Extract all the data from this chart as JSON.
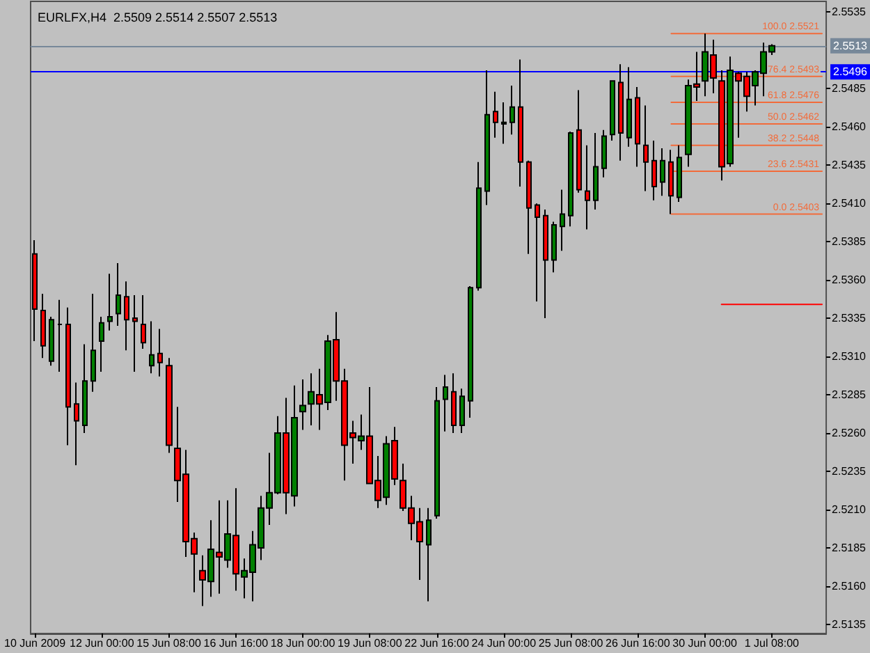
{
  "chart_data": {
    "type": "candlestick",
    "title": "EURLFX,H4  2.5509 2.5514 2.5507 2.5513",
    "categories": [
      "10 Jun 2009",
      null,
      null,
      null,
      null,
      null,
      null,
      null,
      "12 Jun 00:00",
      null,
      null,
      null,
      null,
      null,
      null,
      null,
      "15 Jun 08:00",
      null,
      null,
      null,
      null,
      null,
      null,
      null,
      "16 Jun 16:00",
      null,
      null,
      null,
      null,
      null,
      null,
      null,
      "18 Jun 00:00",
      null,
      null,
      null,
      null,
      null,
      null,
      null,
      "19 Jun 08:00",
      null,
      null,
      null,
      null,
      null,
      null,
      null,
      "22 Jun 16:00",
      null,
      null,
      null,
      null,
      null,
      null,
      null,
      "24 Jun 00:00",
      null,
      null,
      null,
      null,
      null,
      null,
      null,
      "25 Jun 08:00",
      null,
      null,
      null,
      null,
      null,
      null,
      null,
      "26 Jun 16:00",
      null,
      null,
      null,
      null,
      null,
      null,
      null,
      "30 Jun 00:00",
      null,
      null,
      null,
      null,
      null,
      null,
      null,
      "1 Jul 08:00",
      null,
      null,
      null,
      null,
      null,
      null
    ],
    "ohlc": [
      [
        2.5377,
        2.5386,
        2.532,
        2.5341
      ],
      [
        2.534,
        2.5351,
        2.5309,
        2.5317
      ],
      [
        2.5307,
        2.5336,
        2.5304,
        2.5334
      ],
      [
        2.5331,
        2.5347,
        2.53,
        2.5331
      ],
      [
        2.5331,
        2.5342,
        2.5252,
        2.5277
      ],
      [
        2.5279,
        2.5293,
        2.5239,
        2.5268
      ],
      [
        2.5265,
        2.5318,
        2.526,
        2.5294
      ],
      [
        2.5294,
        2.5351,
        2.5287,
        2.5314
      ],
      [
        2.532,
        2.5336,
        2.53,
        2.5332
      ],
      [
        2.5333,
        2.5364,
        2.5327,
        2.5336
      ],
      [
        2.5338,
        2.5371,
        2.533,
        2.535
      ],
      [
        2.5349,
        2.5359,
        2.5314,
        2.5334
      ],
      [
        2.5335,
        2.535,
        2.53,
        2.5333
      ],
      [
        2.5331,
        2.535,
        2.5315,
        2.5319
      ],
      [
        2.5304,
        2.5333,
        2.5299,
        2.5311
      ],
      [
        2.5312,
        2.5328,
        2.5297,
        2.5306
      ],
      [
        2.5304,
        2.5309,
        2.5247,
        2.5252
      ],
      [
        2.525,
        2.5277,
        2.5215,
        2.5229
      ],
      [
        2.5233,
        2.5249,
        2.5179,
        2.5189
      ],
      [
        2.5191,
        2.5195,
        2.5156,
        2.5181
      ],
      [
        2.517,
        2.518,
        2.5147,
        2.5164
      ],
      [
        2.5163,
        2.5203,
        2.5153,
        2.5184
      ],
      [
        2.5182,
        2.5216,
        2.5155,
        2.5179
      ],
      [
        2.5177,
        2.5216,
        2.5172,
        2.5194
      ],
      [
        2.5193,
        2.5224,
        2.5157,
        2.5168
      ],
      [
        2.5166,
        2.5178,
        2.5152,
        2.517
      ],
      [
        2.5169,
        2.5196,
        2.515,
        2.5187
      ],
      [
        2.5185,
        2.5219,
        2.5177,
        2.5211
      ],
      [
        2.5211,
        2.5247,
        2.52,
        2.5221
      ],
      [
        2.5221,
        2.5271,
        2.522,
        2.526
      ],
      [
        2.526,
        2.5283,
        2.5207,
        2.5221
      ],
      [
        2.5219,
        2.5291,
        2.5212,
        2.527
      ],
      [
        2.5274,
        2.5295,
        2.5262,
        2.5278
      ],
      [
        2.5279,
        2.5299,
        2.5265,
        2.5287
      ],
      [
        2.5285,
        2.5302,
        2.5262,
        2.5279
      ],
      [
        2.528,
        2.5324,
        2.5275,
        2.532
      ],
      [
        2.5321,
        2.5339,
        2.5281,
        2.5294
      ],
      [
        2.5294,
        2.5302,
        2.5229,
        2.5252
      ],
      [
        2.526,
        2.5268,
        2.524,
        2.5257
      ],
      [
        2.5255,
        2.5272,
        2.5249,
        2.5258
      ],
      [
        2.5258,
        2.529,
        2.5227,
        2.5227
      ],
      [
        2.5229,
        2.5245,
        2.5211,
        2.5216
      ],
      [
        2.5218,
        2.5258,
        2.5213,
        2.5253
      ],
      [
        2.5255,
        2.5264,
        2.5226,
        2.523
      ],
      [
        2.5229,
        2.524,
        2.5209,
        2.5211
      ],
      [
        2.5211,
        2.5219,
        2.519,
        2.5201
      ],
      [
        2.5202,
        2.5211,
        2.5164,
        2.5189
      ],
      [
        2.5187,
        2.5211,
        2.515,
        2.5203
      ],
      [
        2.5206,
        2.529,
        2.5204,
        2.5281
      ],
      [
        2.5282,
        2.5298,
        2.5261,
        2.529
      ],
      [
        2.5287,
        2.5299,
        2.526,
        2.5265
      ],
      [
        2.5265,
        2.5289,
        2.526,
        2.5284
      ],
      [
        2.5281,
        2.5356,
        2.527,
        2.5355
      ],
      [
        2.5355,
        2.5437,
        2.5353,
        2.542
      ],
      [
        2.5418,
        2.5497,
        2.5409,
        2.5468
      ],
      [
        2.547,
        2.5483,
        2.5453,
        2.5463
      ],
      [
        2.5462,
        2.5476,
        2.5449,
        2.5463
      ],
      [
        2.5463,
        2.5487,
        2.5455,
        2.5473
      ],
      [
        2.5473,
        2.5504,
        2.5421,
        2.5437
      ],
      [
        2.5437,
        2.5438,
        2.5377,
        2.5407
      ],
      [
        2.5409,
        2.541,
        2.5346,
        2.5401
      ],
      [
        2.5402,
        2.5406,
        2.5335,
        2.5373
      ],
      [
        2.5373,
        2.5398,
        2.5365,
        2.5396
      ],
      [
        2.5395,
        2.5419,
        2.5379,
        2.5403
      ],
      [
        2.5402,
        2.5457,
        2.5395,
        2.5456
      ],
      [
        2.5458,
        2.5484,
        2.5417,
        2.5419
      ],
      [
        2.5418,
        2.5448,
        2.5393,
        2.5412
      ],
      [
        2.5412,
        2.5456,
        2.5406,
        2.5434
      ],
      [
        2.5433,
        2.5458,
        2.5427,
        2.5454
      ],
      [
        2.5455,
        2.549,
        2.5451,
        2.549
      ],
      [
        2.5489,
        2.5501,
        2.5438,
        2.5456
      ],
      [
        2.5453,
        2.5499,
        2.5447,
        2.5478
      ],
      [
        2.5479,
        2.5486,
        2.5434,
        2.5449
      ],
      [
        2.5448,
        2.5474,
        2.5418,
        2.5437
      ],
      [
        2.5438,
        2.5451,
        2.5412,
        2.5421
      ],
      [
        2.5424,
        2.5446,
        2.5415,
        2.5438
      ],
      [
        2.5437,
        2.5445,
        2.5403,
        2.5415
      ],
      [
        2.5414,
        2.5448,
        2.5411,
        2.544
      ],
      [
        2.5442,
        2.5491,
        2.5434,
        2.5487
      ],
      [
        2.5488,
        2.5509,
        2.5477,
        2.5486
      ],
      [
        2.549,
        2.5521,
        2.548,
        2.5509
      ],
      [
        2.5507,
        2.5517,
        2.5482,
        2.5492
      ],
      [
        2.549,
        2.5497,
        2.5425,
        2.5434
      ],
      [
        2.5436,
        2.5506,
        2.5434,
        2.5497
      ],
      [
        2.5495,
        2.5496,
        2.5453,
        2.549
      ],
      [
        2.5493,
        2.5496,
        2.547,
        2.548
      ],
      [
        2.5487,
        2.5497,
        2.5474,
        2.5496
      ],
      [
        2.5495,
        2.5515,
        2.548,
        2.5509
      ],
      [
        2.5509,
        2.5514,
        2.5507,
        2.5513
      ],
      null,
      null,
      null,
      null,
      null,
      null
    ],
    "colors": [
      "#ff0000",
      "#ff0000",
      "#008000",
      "#000000",
      "#ff0000",
      "#ff0000",
      "#008000",
      "#008000",
      "#008000",
      "#008000",
      "#008000",
      "#ff0000",
      "#ff0000",
      "#ff0000",
      "#008000",
      "#ff0000",
      "#ff0000",
      "#ff0000",
      "#ff0000",
      "#ff0000",
      "#ff0000",
      "#008000",
      "#ff0000",
      "#008000",
      "#ff0000",
      "#008000",
      "#008000",
      "#008000",
      "#008000",
      "#008000",
      "#ff0000",
      "#008000",
      "#008000",
      "#008000",
      "#ff0000",
      "#008000",
      "#ff0000",
      "#ff0000",
      "#ff0000",
      "#008000",
      "#ff0000",
      "#ff0000",
      "#008000",
      "#ff0000",
      "#ff0000",
      "#ff0000",
      "#ff0000",
      "#008000",
      "#008000",
      "#008000",
      "#ff0000",
      "#008000",
      "#008000",
      "#008000",
      "#008000",
      "#ff0000",
      "#008000",
      "#008000",
      "#ff0000",
      "#ff0000",
      "#ff0000",
      "#ff0000",
      "#008000",
      "#008000",
      "#008000",
      "#ff0000",
      "#ff0000",
      "#008000",
      "#008000",
      "#008000",
      "#ff0000",
      "#008000",
      "#ff0000",
      "#ff0000",
      "#ff0000",
      "#008000",
      "#ff0000",
      "#008000",
      "#008000",
      "#ff0000",
      "#008000",
      "#ff0000",
      "#ff0000",
      "#008000",
      "#ff0000",
      "#ff0000",
      "#008000",
      "#008000",
      "#008000",
      null,
      null,
      null,
      null,
      null,
      null
    ],
    "series": [
      {
        "type": "line",
        "name": "100.0 2.5521",
        "color": "#f26b3a",
        "values": [
          null,
          null,
          null,
          null,
          null,
          null,
          null,
          null,
          null,
          null,
          null,
          null,
          null,
          null,
          null,
          null,
          null,
          null,
          null,
          null,
          null,
          null,
          null,
          null,
          null,
          null,
          null,
          null,
          null,
          null,
          null,
          null,
          null,
          null,
          null,
          null,
          null,
          null,
          null,
          null,
          null,
          null,
          null,
          null,
          null,
          null,
          null,
          null,
          null,
          null,
          null,
          null,
          null,
          null,
          null,
          null,
          null,
          null,
          null,
          null,
          null,
          null,
          null,
          null,
          null,
          null,
          null,
          null,
          null,
          null,
          null,
          null,
          null,
          null,
          null,
          null,
          2.5521,
          2.5521,
          2.5521,
          2.5521,
          2.5521,
          2.5521,
          2.5521,
          2.5521,
          2.5521,
          2.5521,
          2.5521,
          2.5521,
          2.5521,
          2.5521,
          2.5521,
          2.5521,
          2.5521,
          2.5521,
          2.5521
        ]
      },
      {
        "type": "line",
        "name": "76.4 2.5493",
        "color": "#f26b3a",
        "values": [
          null,
          null,
          null,
          null,
          null,
          null,
          null,
          null,
          null,
          null,
          null,
          null,
          null,
          null,
          null,
          null,
          null,
          null,
          null,
          null,
          null,
          null,
          null,
          null,
          null,
          null,
          null,
          null,
          null,
          null,
          null,
          null,
          null,
          null,
          null,
          null,
          null,
          null,
          null,
          null,
          null,
          null,
          null,
          null,
          null,
          null,
          null,
          null,
          null,
          null,
          null,
          null,
          null,
          null,
          null,
          null,
          null,
          null,
          null,
          null,
          null,
          null,
          null,
          null,
          null,
          null,
          null,
          null,
          null,
          null,
          null,
          null,
          null,
          null,
          null,
          null,
          2.5493,
          2.5493,
          2.5493,
          2.5493,
          2.5493,
          2.5493,
          2.5493,
          2.5493,
          2.5493,
          2.5493,
          2.5493,
          2.5493,
          2.5493,
          2.5493,
          2.5493,
          2.5493,
          2.5493,
          2.5493,
          2.5493
        ]
      },
      {
        "type": "line",
        "name": "61.8 2.5476",
        "color": "#f26b3a",
        "values": [
          null,
          null,
          null,
          null,
          null,
          null,
          null,
          null,
          null,
          null,
          null,
          null,
          null,
          null,
          null,
          null,
          null,
          null,
          null,
          null,
          null,
          null,
          null,
          null,
          null,
          null,
          null,
          null,
          null,
          null,
          null,
          null,
          null,
          null,
          null,
          null,
          null,
          null,
          null,
          null,
          null,
          null,
          null,
          null,
          null,
          null,
          null,
          null,
          null,
          null,
          null,
          null,
          null,
          null,
          null,
          null,
          null,
          null,
          null,
          null,
          null,
          null,
          null,
          null,
          null,
          null,
          null,
          null,
          null,
          null,
          null,
          null,
          null,
          null,
          null,
          null,
          2.5476,
          2.5476,
          2.5476,
          2.5476,
          2.5476,
          2.5476,
          2.5476,
          2.5476,
          2.5476,
          2.5476,
          2.5476,
          2.5476,
          2.5476,
          2.5476,
          2.5476,
          2.5476,
          2.5476,
          2.5476,
          2.5476
        ]
      },
      {
        "type": "line",
        "name": "50.0 2.5462",
        "color": "#f26b3a",
        "values": [
          null,
          null,
          null,
          null,
          null,
          null,
          null,
          null,
          null,
          null,
          null,
          null,
          null,
          null,
          null,
          null,
          null,
          null,
          null,
          null,
          null,
          null,
          null,
          null,
          null,
          null,
          null,
          null,
          null,
          null,
          null,
          null,
          null,
          null,
          null,
          null,
          null,
          null,
          null,
          null,
          null,
          null,
          null,
          null,
          null,
          null,
          null,
          null,
          null,
          null,
          null,
          null,
          null,
          null,
          null,
          null,
          null,
          null,
          null,
          null,
          null,
          null,
          null,
          null,
          null,
          null,
          null,
          null,
          null,
          null,
          null,
          null,
          null,
          null,
          null,
          null,
          2.5462,
          2.5462,
          2.5462,
          2.5462,
          2.5462,
          2.5462,
          2.5462,
          2.5462,
          2.5462,
          2.5462,
          2.5462,
          2.5462,
          2.5462,
          2.5462,
          2.5462,
          2.5462,
          2.5462,
          2.5462,
          2.5462
        ]
      },
      {
        "type": "line",
        "name": "38.2 2.5448",
        "color": "#f26b3a",
        "values": [
          null,
          null,
          null,
          null,
          null,
          null,
          null,
          null,
          null,
          null,
          null,
          null,
          null,
          null,
          null,
          null,
          null,
          null,
          null,
          null,
          null,
          null,
          null,
          null,
          null,
          null,
          null,
          null,
          null,
          null,
          null,
          null,
          null,
          null,
          null,
          null,
          null,
          null,
          null,
          null,
          null,
          null,
          null,
          null,
          null,
          null,
          null,
          null,
          null,
          null,
          null,
          null,
          null,
          null,
          null,
          null,
          null,
          null,
          null,
          null,
          null,
          null,
          null,
          null,
          null,
          null,
          null,
          null,
          null,
          null,
          null,
          null,
          null,
          null,
          null,
          null,
          2.5448,
          2.5448,
          2.5448,
          2.5448,
          2.5448,
          2.5448,
          2.5448,
          2.5448,
          2.5448,
          2.5448,
          2.5448,
          2.5448,
          2.5448,
          2.5448,
          2.5448,
          2.5448,
          2.5448,
          2.5448,
          2.5448
        ]
      },
      {
        "type": "line",
        "name": "23.6 2.5431",
        "color": "#f26b3a",
        "values": [
          null,
          null,
          null,
          null,
          null,
          null,
          null,
          null,
          null,
          null,
          null,
          null,
          null,
          null,
          null,
          null,
          null,
          null,
          null,
          null,
          null,
          null,
          null,
          null,
          null,
          null,
          null,
          null,
          null,
          null,
          null,
          null,
          null,
          null,
          null,
          null,
          null,
          null,
          null,
          null,
          null,
          null,
          null,
          null,
          null,
          null,
          null,
          null,
          null,
          null,
          null,
          null,
          null,
          null,
          null,
          null,
          null,
          null,
          null,
          null,
          null,
          null,
          null,
          null,
          null,
          null,
          null,
          null,
          null,
          null,
          null,
          null,
          null,
          null,
          null,
          null,
          2.5431,
          2.5431,
          2.5431,
          2.5431,
          2.5431,
          2.5431,
          2.5431,
          2.5431,
          2.5431,
          2.5431,
          2.5431,
          2.5431,
          2.5431,
          2.5431,
          2.5431,
          2.5431,
          2.5431,
          2.5431,
          2.5431
        ]
      },
      {
        "type": "line",
        "name": "0.0 2.5403",
        "color": "#f26b3a",
        "values": [
          null,
          null,
          null,
          null,
          null,
          null,
          null,
          null,
          null,
          null,
          null,
          null,
          null,
          null,
          null,
          null,
          null,
          null,
          null,
          null,
          null,
          null,
          null,
          null,
          null,
          null,
          null,
          null,
          null,
          null,
          null,
          null,
          null,
          null,
          null,
          null,
          null,
          null,
          null,
          null,
          null,
          null,
          null,
          null,
          null,
          null,
          null,
          null,
          null,
          null,
          null,
          null,
          null,
          null,
          null,
          null,
          null,
          null,
          null,
          null,
          null,
          null,
          null,
          null,
          null,
          null,
          null,
          null,
          null,
          null,
          null,
          null,
          null,
          null,
          null,
          null,
          2.5403,
          2.5403,
          2.5403,
          2.5403,
          2.5403,
          2.5403,
          2.5403,
          2.5403,
          2.5403,
          2.5403,
          2.5403,
          2.5403,
          2.5403,
          2.5403,
          2.5403,
          2.5403,
          2.5403,
          2.5403,
          2.5403
        ]
      },
      {
        "type": "line",
        "color": "#ff0000",
        "values": [
          null,
          null,
          null,
          null,
          null,
          null,
          null,
          null,
          null,
          null,
          null,
          null,
          null,
          null,
          null,
          null,
          null,
          null,
          null,
          null,
          null,
          null,
          null,
          null,
          null,
          null,
          null,
          null,
          null,
          null,
          null,
          null,
          null,
          null,
          null,
          null,
          null,
          null,
          null,
          null,
          null,
          null,
          null,
          null,
          null,
          null,
          null,
          null,
          null,
          null,
          null,
          null,
          null,
          null,
          null,
          null,
          null,
          null,
          null,
          null,
          null,
          null,
          null,
          null,
          null,
          null,
          null,
          null,
          null,
          null,
          null,
          null,
          null,
          null,
          null,
          null,
          null,
          null,
          null,
          null,
          null,
          null,
          2.5344,
          2.5344,
          2.5344,
          2.5344,
          2.5344,
          2.5344,
          2.5344,
          2.5344,
          2.5344,
          2.5344,
          2.5344,
          2.5344,
          2.5344
        ]
      }
    ],
    "ylim": [
      2.5129,
      2.5542
    ],
    "yticks": [
      2.5135,
      {
        "value": 2.516,
        "label": "2.5160"
      },
      2.5185,
      {
        "value": 2.521,
        "label": "2.5210"
      },
      2.5235,
      {
        "value": 2.526,
        "label": "2.5260"
      },
      2.5285,
      {
        "value": 2.531,
        "label": "2.5310"
      },
      2.5335,
      {
        "value": 2.536,
        "label": "2.5360"
      },
      2.5385,
      {
        "value": 2.541,
        "label": "2.5410"
      },
      2.5435,
      {
        "value": 2.546,
        "label": "2.5460"
      },
      2.5485,
      2.5535
    ],
    "ref_lines": [
      {
        "axis": "y",
        "value": 2.5513,
        "label": "2.5513",
        "color": "#778899"
      },
      {
        "axis": "y",
        "value": 2.5496,
        "label": "2.5496",
        "color": "#0000ff"
      }
    ]
  }
}
